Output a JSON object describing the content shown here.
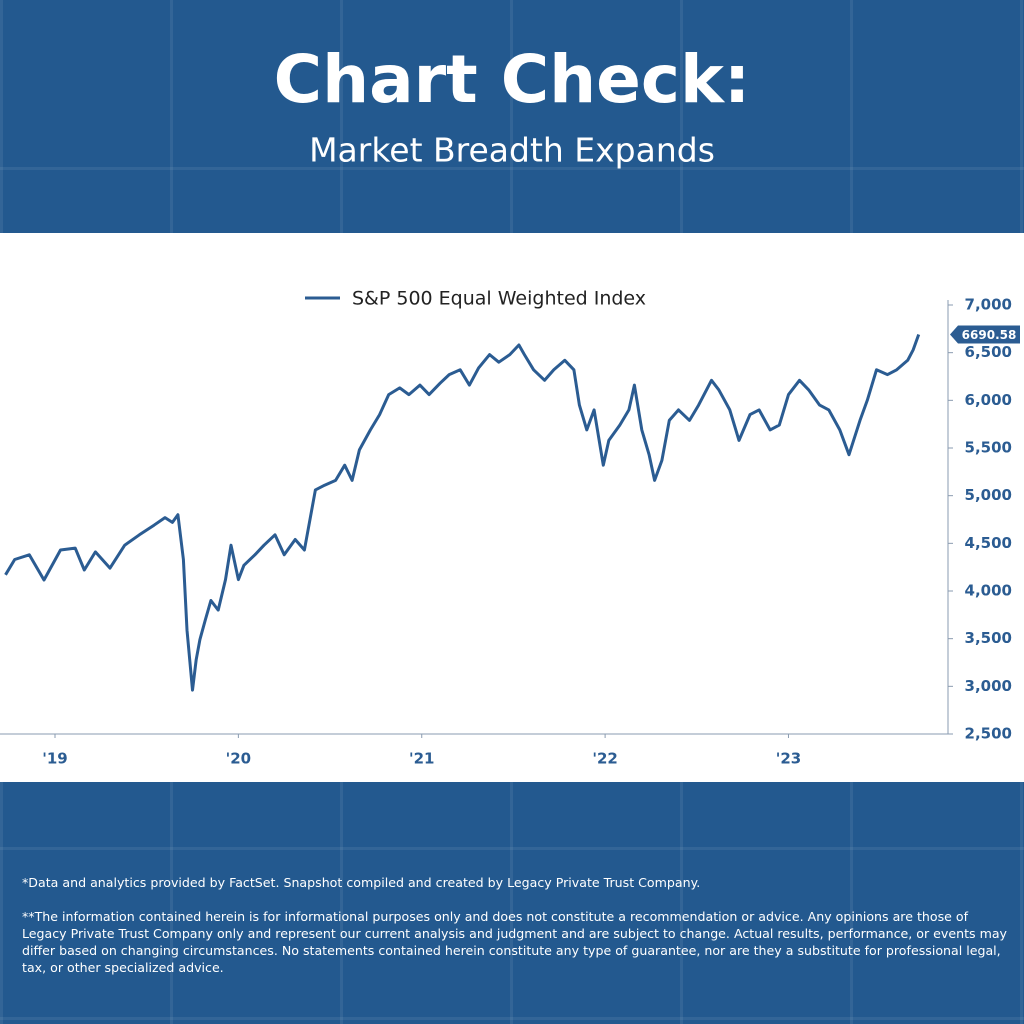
{
  "header": {
    "title": "Chart Check:",
    "subtitle": "Market Breadth Expands"
  },
  "chart_data": {
    "type": "line",
    "x": [
      2019.23,
      2019.28,
      2019.36,
      2019.44,
      2019.53,
      2019.61,
      2019.66,
      2019.72,
      2019.8,
      2019.88,
      2019.96,
      2020.04,
      2020.1,
      2020.14,
      2020.17,
      2020.2,
      2020.22,
      2020.25,
      2020.27,
      2020.29,
      2020.32,
      2020.35,
      2020.39,
      2020.43,
      2020.46,
      2020.5,
      2020.53,
      2020.59,
      2020.64,
      2020.7,
      2020.75,
      2020.81,
      2020.86,
      2020.92,
      2020.97,
      2021.03,
      2021.08,
      2021.12,
      2021.16,
      2021.22,
      2021.27,
      2021.32,
      2021.38,
      2021.43,
      2021.49,
      2021.54,
      2021.6,
      2021.65,
      2021.71,
      2021.76,
      2021.81,
      2021.87,
      2021.92,
      2021.98,
      2022.03,
      2022.06,
      2022.11,
      2022.17,
      2022.22,
      2022.28,
      2022.33,
      2022.36,
      2022.4,
      2022.44,
      2022.49,
      2022.52,
      2022.58,
      2022.63,
      2022.66,
      2022.7,
      2022.74,
      2022.77,
      2022.81,
      2022.85,
      2022.9,
      2022.96,
      2023.01,
      2023.08,
      2023.12,
      2023.18,
      2023.23,
      2023.29,
      2023.34,
      2023.4,
      2023.45,
      2023.5,
      2023.56,
      2023.61,
      2023.67,
      2023.72,
      2023.78,
      2023.83,
      2023.89,
      2023.93,
      2023.98,
      2024.04,
      2024.09,
      2024.15,
      2024.18,
      2024.21
    ],
    "series": [
      {
        "name": "S&P 500 Equal Weighted Index",
        "color": "#2b5c92",
        "values": [
          4170,
          4330,
          4380,
          4115,
          4430,
          4450,
          4220,
          4410,
          4240,
          4480,
          4590,
          4690,
          4770,
          4720,
          4800,
          4330,
          3590,
          2960,
          3280,
          3490,
          3700,
          3900,
          3800,
          4120,
          4480,
          4120,
          4270,
          4380,
          4480,
          4590,
          4380,
          4540,
          4430,
          5060,
          5110,
          5160,
          5320,
          5160,
          5480,
          5690,
          5850,
          6060,
          6130,
          6060,
          6160,
          6060,
          6180,
          6270,
          6320,
          6160,
          6340,
          6480,
          6400,
          6480,
          6580,
          6480,
          6320,
          6210,
          6320,
          6420,
          6320,
          5950,
          5690,
          5900,
          5320,
          5580,
          5740,
          5900,
          6160,
          5690,
          5430,
          5160,
          5370,
          5790,
          5900,
          5790,
          5950,
          6210,
          6110,
          5900,
          5580,
          5850,
          5900,
          5690,
          5740,
          6060,
          6210,
          6110,
          5950,
          5900,
          5690,
          5430,
          5790,
          6000,
          6320,
          6270,
          6320,
          6420,
          6530,
          6690.58
        ]
      }
    ],
    "xlim": [
      2019.2,
      2024.37
    ],
    "xticks": [
      {
        "value": 2019.5,
        "label": "'19"
      },
      {
        "value": 2020.5,
        "label": "'20"
      },
      {
        "value": 2021.5,
        "label": "'21"
      },
      {
        "value": 2022.5,
        "label": "'22"
      },
      {
        "value": 2023.5,
        "label": "'23"
      }
    ],
    "ylim": [
      2500,
      7000
    ],
    "yticks": [
      {
        "value": 2500,
        "label": "2,500"
      },
      {
        "value": 3000,
        "label": "3,000"
      },
      {
        "value": 3500,
        "label": "3,500"
      },
      {
        "value": 4000,
        "label": "4,000"
      },
      {
        "value": 4500,
        "label": "4,500"
      },
      {
        "value": 5000,
        "label": "5,000"
      },
      {
        "value": 5500,
        "label": "5,500"
      },
      {
        "value": 6000,
        "label": "6,000"
      },
      {
        "value": 6500,
        "label": "6,500"
      },
      {
        "value": 7000,
        "label": "7,000"
      }
    ],
    "grid": false,
    "legend": "top"
  },
  "footnotes": [
    "*Data and analytics provided by FactSet. Snapshot compiled and created by Legacy Private Trust Company.",
    "**The information contained herein is for informational purposes only and does not constitute a recommendation or advice. Any opinions are those of Legacy Private Trust Company only and represent our current analysis and judgment and are subject to change. Actual results, performance, or events may differ based on changing circumstances. No statements contained herein constitute any type of guarantee, nor are they a substitute for professional legal, tax, or other specialized advice."
  ]
}
